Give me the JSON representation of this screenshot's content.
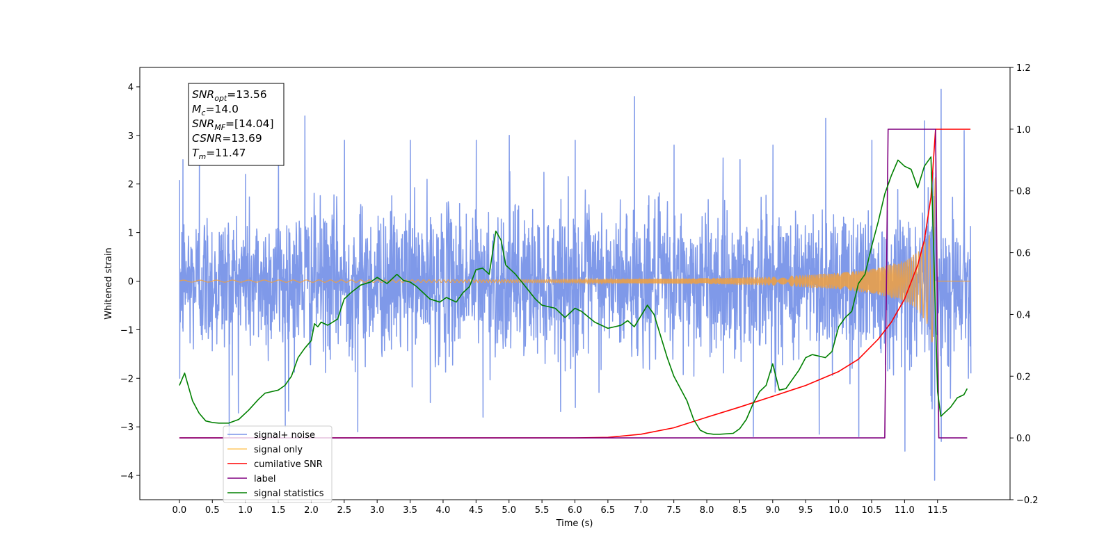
{
  "chart_data": {
    "type": "line",
    "title": "",
    "xlabel": "Time (s)",
    "ylabel_left": "Whitened strain",
    "ylabel_right": "",
    "xlim": [
      -0.6,
      12.6
    ],
    "ylim_left": [
      -4.5,
      4.4
    ],
    "ylim_right": [
      -0.2,
      1.2
    ],
    "x_ticks": [
      0.0,
      0.5,
      1.0,
      1.5,
      2.0,
      2.5,
      3.0,
      3.5,
      4.0,
      4.5,
      5.0,
      5.5,
      6.0,
      6.5,
      7.0,
      7.5,
      8.0,
      8.5,
      9.0,
      9.5,
      10.0,
      10.5,
      11.0,
      11.5
    ],
    "x_tick_labels": [
      "0.0",
      "0.5",
      "1.0",
      "1.5",
      "2.0",
      "2.5",
      "3.0",
      "3.5",
      "4.0",
      "4.5",
      "5.0",
      "5.5",
      "6.0",
      "6.5",
      "7.0",
      "7.5",
      "8.0",
      "8.5",
      "9.0",
      "9.5",
      "10.0",
      "10.5",
      "11.0",
      "11.5"
    ],
    "y_left_ticks": [
      -4,
      -3,
      -2,
      -1,
      0,
      1,
      2,
      3,
      4
    ],
    "y_left_tick_labels": [
      "−4",
      "−3",
      "−2",
      "−1",
      "0",
      "1",
      "2",
      "3",
      "4"
    ],
    "y_right_ticks": [
      -0.2,
      0.0,
      0.2,
      0.4,
      0.6,
      0.8,
      1.0,
      1.2
    ],
    "y_right_tick_labels": [
      "−0.2",
      "0.0",
      "0.2",
      "0.4",
      "0.6",
      "0.8",
      "1.0",
      "1.2"
    ],
    "grid": false,
    "legend_position": "bottom-left",
    "legend_entries": [
      {
        "label": "signal+ noise",
        "color": "#7893e8"
      },
      {
        "label": "signal only",
        "color": "#ffc864"
      },
      {
        "label": "cumilative SNR",
        "color": "#ff0000"
      },
      {
        "label": "label",
        "color": "#800080"
      },
      {
        "label": "signal statistics",
        "color": "#008000"
      }
    ],
    "annotation": {
      "lines": [
        {
          "sym": "SNR",
          "sub": "opt",
          "value": "=13.56"
        },
        {
          "sym": "M",
          "sub": "c",
          "value": "=14.0"
        },
        {
          "sym": "SNR",
          "sub": "MF",
          "value": "=[14.04]"
        },
        {
          "sym": "CSNR",
          "sub": "",
          "value": "=13.69"
        },
        {
          "sym": "T",
          "sub": "m",
          "value": "=11.47"
        }
      ]
    },
    "series": [
      {
        "name": "signal+ noise",
        "axis": "left",
        "color": "#7893e8",
        "x_range": [
          0.0,
          12.0
        ],
        "noise_std": 0.75,
        "peaks": [
          {
            "x": 0.0,
            "y": 2.05
          },
          {
            "x": 0.05,
            "y": 2.5
          },
          {
            "x": 0.3,
            "y": 3.1
          },
          {
            "x": 1.0,
            "y": 2.2
          },
          {
            "x": 1.5,
            "y": 2.7
          },
          {
            "x": 1.9,
            "y": 3.4
          },
          {
            "x": 2.5,
            "y": 2.9
          },
          {
            "x": 3.5,
            "y": 2.9
          },
          {
            "x": 4.5,
            "y": 2.9
          },
          {
            "x": 5.0,
            "y": 3.0
          },
          {
            "x": 6.0,
            "y": 2.9
          },
          {
            "x": 6.9,
            "y": 3.8
          },
          {
            "x": 7.5,
            "y": 2.8
          },
          {
            "x": 8.5,
            "y": 2.5
          },
          {
            "x": 9.0,
            "y": 2.8
          },
          {
            "x": 9.8,
            "y": 3.35
          },
          {
            "x": 10.5,
            "y": 2.9
          },
          {
            "x": 11.3,
            "y": 3.3
          },
          {
            "x": 11.55,
            "y": 3.95
          },
          {
            "x": 11.9,
            "y": 3.1
          }
        ],
        "troughs": [
          {
            "x": 0.0,
            "y": -2.0
          },
          {
            "x": 0.75,
            "y": -3.2
          },
          {
            "x": 1.6,
            "y": -3.0
          },
          {
            "x": 2.7,
            "y": -3.1
          },
          {
            "x": 3.8,
            "y": -2.5
          },
          {
            "x": 4.6,
            "y": -2.8
          },
          {
            "x": 6.0,
            "y": -2.6
          },
          {
            "x": 8.7,
            "y": -3.2
          },
          {
            "x": 9.7,
            "y": -3.15
          },
          {
            "x": 10.3,
            "y": -3.2
          },
          {
            "x": 11.0,
            "y": -3.5
          },
          {
            "x": 11.45,
            "y": -4.1
          },
          {
            "x": 11.55,
            "y": -3.3
          },
          {
            "x": 12.0,
            "y": -1.9
          }
        ]
      },
      {
        "name": "signal only",
        "axis": "left",
        "color": "#f0a040",
        "x_range": [
          0.0,
          12.0
        ],
        "envelope": {
          "x": [
            0.0,
            5.5,
            8.0,
            9.0,
            10.0,
            10.5,
            11.0,
            11.2,
            11.4,
            11.47,
            11.5,
            12.0
          ],
          "amp": [
            0.02,
            0.03,
            0.06,
            0.09,
            0.17,
            0.25,
            0.42,
            0.6,
            1.0,
            2.2,
            0.0,
            0.0
          ]
        }
      },
      {
        "name": "cumilative SNR",
        "axis": "right",
        "color": "#ff0000",
        "x": [
          0.0,
          6.0,
          6.5,
          7.0,
          7.5,
          8.0,
          8.5,
          9.0,
          9.5,
          10.0,
          10.3,
          10.6,
          10.8,
          11.0,
          11.2,
          11.3,
          11.4,
          11.47,
          11.5,
          12.0
        ],
        "y": [
          0.0,
          0.0,
          0.002,
          0.012,
          0.033,
          0.067,
          0.1,
          0.135,
          0.17,
          0.215,
          0.255,
          0.32,
          0.375,
          0.45,
          0.56,
          0.64,
          0.78,
          1.0,
          1.0,
          1.0
        ]
      },
      {
        "name": "label",
        "axis": "right",
        "color": "#800080",
        "x": [
          0.0,
          10.7,
          10.75,
          11.47,
          11.52,
          11.95
        ],
        "y": [
          0.0,
          0.0,
          1.0,
          1.0,
          0.0,
          0.0
        ]
      },
      {
        "name": "signal statistics",
        "axis": "right",
        "color": "#008000",
        "x": [
          0.0,
          0.08,
          0.12,
          0.2,
          0.3,
          0.4,
          0.5,
          0.6,
          0.75,
          0.9,
          1.05,
          1.2,
          1.3,
          1.4,
          1.5,
          1.6,
          1.7,
          1.75,
          1.8,
          1.9,
          2.0,
          2.05,
          2.1,
          2.15,
          2.25,
          2.4,
          2.5,
          2.6,
          2.75,
          2.9,
          3.0,
          3.15,
          3.3,
          3.4,
          3.5,
          3.6,
          3.8,
          3.95,
          4.05,
          4.2,
          4.3,
          4.4,
          4.5,
          4.6,
          4.7,
          4.8,
          4.88,
          4.95,
          5.0,
          5.1,
          5.25,
          5.4,
          5.5,
          5.7,
          5.85,
          6.0,
          6.1,
          6.3,
          6.5,
          6.7,
          6.8,
          6.9,
          7.0,
          7.1,
          7.2,
          7.3,
          7.4,
          7.5,
          7.7,
          7.8,
          7.9,
          8.0,
          8.1,
          8.2,
          8.4,
          8.5,
          8.6,
          8.7,
          8.8,
          8.9,
          9.0,
          9.1,
          9.2,
          9.3,
          9.4,
          9.5,
          9.6,
          9.7,
          9.8,
          9.9,
          10.0,
          10.1,
          10.2,
          10.3,
          10.4,
          10.5,
          10.6,
          10.7,
          10.8,
          10.9,
          11.0,
          11.1,
          11.2,
          11.3,
          11.4,
          11.45,
          11.5,
          11.55,
          11.6,
          11.7,
          11.8,
          11.9,
          11.95
        ],
        "y": [
          0.17,
          0.21,
          0.18,
          0.12,
          0.08,
          0.055,
          0.05,
          0.048,
          0.048,
          0.06,
          0.09,
          0.125,
          0.145,
          0.15,
          0.155,
          0.17,
          0.2,
          0.23,
          0.26,
          0.29,
          0.315,
          0.37,
          0.36,
          0.375,
          0.365,
          0.385,
          0.45,
          0.47,
          0.495,
          0.505,
          0.52,
          0.5,
          0.53,
          0.51,
          0.505,
          0.49,
          0.45,
          0.44,
          0.455,
          0.44,
          0.47,
          0.49,
          0.545,
          0.55,
          0.53,
          0.67,
          0.64,
          0.56,
          0.55,
          0.53,
          0.49,
          0.45,
          0.43,
          0.42,
          0.39,
          0.42,
          0.41,
          0.375,
          0.355,
          0.365,
          0.38,
          0.36,
          0.395,
          0.43,
          0.4,
          0.33,
          0.26,
          0.2,
          0.12,
          0.06,
          0.025,
          0.015,
          0.012,
          0.012,
          0.015,
          0.03,
          0.06,
          0.11,
          0.15,
          0.17,
          0.24,
          0.155,
          0.16,
          0.19,
          0.22,
          0.26,
          0.27,
          0.265,
          0.26,
          0.28,
          0.36,
          0.39,
          0.41,
          0.5,
          0.53,
          0.62,
          0.7,
          0.79,
          0.85,
          0.9,
          0.88,
          0.87,
          0.81,
          0.88,
          0.91,
          0.55,
          0.15,
          0.07,
          0.08,
          0.1,
          0.13,
          0.14,
          0.16
        ]
      }
    ]
  }
}
